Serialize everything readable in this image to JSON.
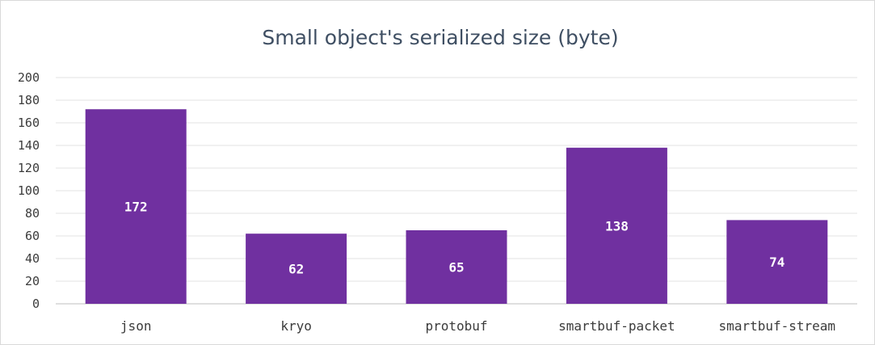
{
  "chart_data": {
    "type": "bar",
    "title": "Small object's serialized size (byte)",
    "xlabel": "",
    "ylabel": "",
    "categories": [
      "json",
      "kryo",
      "protobuf",
      "smartbuf-packet",
      "smartbuf-stream"
    ],
    "values": [
      172,
      62,
      65,
      138,
      74
    ],
    "ylim": [
      0,
      200
    ],
    "yticks": [
      0,
      20,
      40,
      60,
      80,
      100,
      120,
      140,
      160,
      180,
      200
    ],
    "grid": true,
    "legend": "none",
    "bar_color": "#7030a0",
    "data_labels": true
  }
}
